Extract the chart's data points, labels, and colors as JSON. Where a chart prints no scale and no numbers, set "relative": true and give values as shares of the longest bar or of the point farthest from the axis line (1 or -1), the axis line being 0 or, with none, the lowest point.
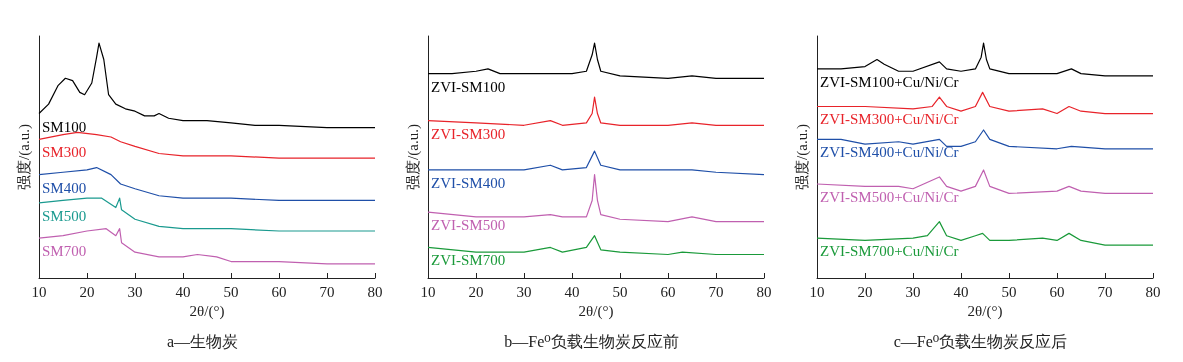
{
  "chart_data": [
    {
      "type": "line",
      "title": "a—生物炭",
      "xlabel": "2θ/(°)",
      "ylabel": "强度/(a.u.)",
      "relative": true,
      "xlim": [
        10,
        80
      ],
      "xticks": [
        10,
        20,
        30,
        40,
        50,
        60,
        70,
        80
      ],
      "series": [
        {
          "name": "SM100",
          "color": "#000000",
          "x": [
            10,
            12,
            14,
            15.5,
            17,
            18.5,
            19.5,
            21,
            22,
            22.5,
            23.5,
            24.5,
            26,
            28,
            30,
            32,
            34,
            35,
            37,
            40,
            45,
            50,
            55,
            60,
            70,
            80
          ],
          "values": [
            0.7,
            0.74,
            0.82,
            0.85,
            0.84,
            0.79,
            0.78,
            0.83,
            0.94,
            1.0,
            0.93,
            0.78,
            0.74,
            0.72,
            0.71,
            0.69,
            0.69,
            0.7,
            0.68,
            0.67,
            0.67,
            0.66,
            0.65,
            0.65,
            0.64,
            0.64
          ]
        },
        {
          "name": "SM300",
          "color": "#e8232a",
          "x": [
            10,
            15,
            18,
            22,
            25,
            27,
            30,
            35,
            40,
            45,
            50,
            60,
            70,
            80
          ],
          "values": [
            0.59,
            0.61,
            0.62,
            0.61,
            0.6,
            0.58,
            0.56,
            0.53,
            0.52,
            0.52,
            0.52,
            0.51,
            0.51,
            0.51
          ]
        },
        {
          "name": "SM400",
          "color": "#1f4fa8",
          "x": [
            10,
            15,
            20,
            22,
            25,
            27,
            30,
            35,
            40,
            50,
            60,
            70,
            80
          ],
          "values": [
            0.44,
            0.45,
            0.46,
            0.47,
            0.44,
            0.4,
            0.38,
            0.35,
            0.34,
            0.34,
            0.33,
            0.33,
            0.33
          ]
        },
        {
          "name": "SM500",
          "color": "#1a9a8f",
          "x": [
            10,
            15,
            20,
            23,
            26,
            26.8,
            27.2,
            30,
            35,
            40,
            45,
            50,
            60,
            70,
            80
          ],
          "values": [
            0.32,
            0.33,
            0.34,
            0.34,
            0.3,
            0.34,
            0.29,
            0.25,
            0.22,
            0.21,
            0.21,
            0.21,
            0.2,
            0.2,
            0.2
          ]
        },
        {
          "name": "SM700",
          "color": "#c060b0",
          "x": [
            10,
            15,
            20,
            24,
            26,
            26.8,
            27.2,
            30,
            35,
            40,
            43,
            47,
            50,
            60,
            70,
            80
          ],
          "values": [
            0.17,
            0.18,
            0.2,
            0.21,
            0.18,
            0.21,
            0.15,
            0.11,
            0.09,
            0.09,
            0.1,
            0.09,
            0.07,
            0.07,
            0.06,
            0.06
          ]
        }
      ]
    },
    {
      "type": "line",
      "title": "b—Fe⁰负载生物炭反应前",
      "xlabel": "2θ/(°)",
      "ylabel": "强度/(a.u.)",
      "relative": true,
      "xlim": [
        10,
        80
      ],
      "xticks": [
        10,
        20,
        30,
        40,
        50,
        60,
        70,
        80
      ],
      "series": [
        {
          "name": "ZVI-SM100",
          "color": "#000000",
          "x": [
            10,
            15,
            20,
            22.5,
            25,
            30,
            36,
            40,
            43,
            44.2,
            44.7,
            45.3,
            46,
            50,
            60,
            65,
            70,
            80
          ],
          "values": [
            0.87,
            0.87,
            0.88,
            0.89,
            0.87,
            0.87,
            0.87,
            0.87,
            0.88,
            0.95,
            1.0,
            0.93,
            0.88,
            0.86,
            0.85,
            0.86,
            0.85,
            0.85
          ]
        },
        {
          "name": "ZVI-SM300",
          "color": "#e8232a",
          "x": [
            10,
            20,
            30,
            35.5,
            38,
            43,
            44.2,
            44.7,
            45.3,
            46,
            50,
            60,
            65,
            70,
            80
          ],
          "values": [
            0.67,
            0.66,
            0.65,
            0.67,
            0.65,
            0.66,
            0.7,
            0.77,
            0.7,
            0.66,
            0.65,
            0.65,
            0.66,
            0.65,
            0.65
          ]
        },
        {
          "name": "ZVI-SM400",
          "color": "#1f4fa8",
          "x": [
            10,
            20,
            30,
            35.5,
            38,
            43,
            44.7,
            46,
            50,
            60,
            65,
            70,
            80
          ],
          "values": [
            0.46,
            0.46,
            0.46,
            0.48,
            0.46,
            0.47,
            0.54,
            0.48,
            0.46,
            0.46,
            0.46,
            0.45,
            0.44
          ]
        },
        {
          "name": "ZVI-SM500",
          "color": "#c060b0",
          "x": [
            10,
            20,
            30,
            35.5,
            38,
            43,
            44.2,
            44.7,
            45.3,
            46,
            50,
            60,
            65,
            70,
            80
          ],
          "values": [
            0.28,
            0.26,
            0.26,
            0.27,
            0.26,
            0.26,
            0.33,
            0.44,
            0.33,
            0.27,
            0.25,
            0.24,
            0.26,
            0.24,
            0.24
          ]
        },
        {
          "name": "ZVI-SM700",
          "color": "#1a9a3a",
          "x": [
            10,
            20,
            30,
            35.5,
            38,
            43,
            44.7,
            46,
            50,
            60,
            63,
            70,
            80
          ],
          "values": [
            0.13,
            0.11,
            0.11,
            0.13,
            0.11,
            0.13,
            0.18,
            0.12,
            0.11,
            0.1,
            0.11,
            0.1,
            0.1
          ]
        }
      ]
    },
    {
      "type": "line",
      "title": "c—Fe⁰负载生物炭反应后",
      "xlabel": "2θ/(°)",
      "ylabel": "强度/(a.u.)",
      "relative": true,
      "xlim": [
        10,
        80
      ],
      "xticks": [
        10,
        20,
        30,
        40,
        50,
        60,
        70,
        80
      ],
      "series": [
        {
          "name": "ZVI-SM100+Cu/Ni/Cr",
          "color": "#000000",
          "x": [
            10,
            15,
            20,
            22.5,
            24,
            27,
            30,
            35.5,
            37,
            40,
            43,
            44.2,
            44.7,
            45.3,
            46,
            50,
            55,
            60,
            63,
            65,
            70,
            80
          ],
          "values": [
            0.89,
            0.89,
            0.9,
            0.93,
            0.91,
            0.88,
            0.88,
            0.92,
            0.89,
            0.88,
            0.89,
            0.94,
            1.0,
            0.93,
            0.89,
            0.87,
            0.87,
            0.87,
            0.89,
            0.87,
            0.86,
            0.86
          ]
        },
        {
          "name": "ZVI-SM300+Cu/Ni/Cr",
          "color": "#e8232a",
          "x": [
            10,
            20,
            30,
            34,
            35.5,
            37,
            40,
            43,
            44.5,
            46,
            50,
            57,
            60,
            62.5,
            65,
            70,
            80
          ],
          "values": [
            0.73,
            0.73,
            0.72,
            0.73,
            0.77,
            0.73,
            0.71,
            0.73,
            0.79,
            0.73,
            0.71,
            0.72,
            0.7,
            0.73,
            0.71,
            0.7,
            0.7
          ]
        },
        {
          "name": "ZVI-SM400+Cu/Ni/Cr",
          "color": "#1f4fa8",
          "x": [
            10,
            15,
            20,
            27,
            30,
            35.5,
            37,
            40,
            43,
            44.7,
            46,
            50,
            60,
            63,
            70,
            80
          ],
          "values": [
            0.59,
            0.59,
            0.57,
            0.58,
            0.57,
            0.59,
            0.56,
            0.56,
            0.58,
            0.63,
            0.59,
            0.56,
            0.55,
            0.56,
            0.55,
            0.55
          ]
        },
        {
          "name": "ZVI-SM500+Cu/Ni/Cr",
          "color": "#c060b0",
          "x": [
            10,
            20,
            27,
            30,
            35.5,
            37,
            40,
            43,
            44.7,
            46,
            50,
            60,
            62.5,
            65,
            70,
            80
          ],
          "values": [
            0.4,
            0.39,
            0.39,
            0.38,
            0.43,
            0.39,
            0.37,
            0.39,
            0.46,
            0.39,
            0.36,
            0.37,
            0.39,
            0.37,
            0.36,
            0.36
          ]
        },
        {
          "name": "ZVI-SM700+Cu/Ni/Cr",
          "color": "#1a9a3a",
          "x": [
            10,
            20,
            30,
            33,
            35.5,
            37,
            40,
            43,
            44.5,
            46,
            50,
            57,
            60,
            62.5,
            65,
            70,
            80
          ],
          "values": [
            0.17,
            0.16,
            0.17,
            0.18,
            0.24,
            0.18,
            0.16,
            0.18,
            0.19,
            0.16,
            0.16,
            0.17,
            0.16,
            0.19,
            0.16,
            0.14,
            0.14
          ]
        }
      ]
    }
  ]
}
